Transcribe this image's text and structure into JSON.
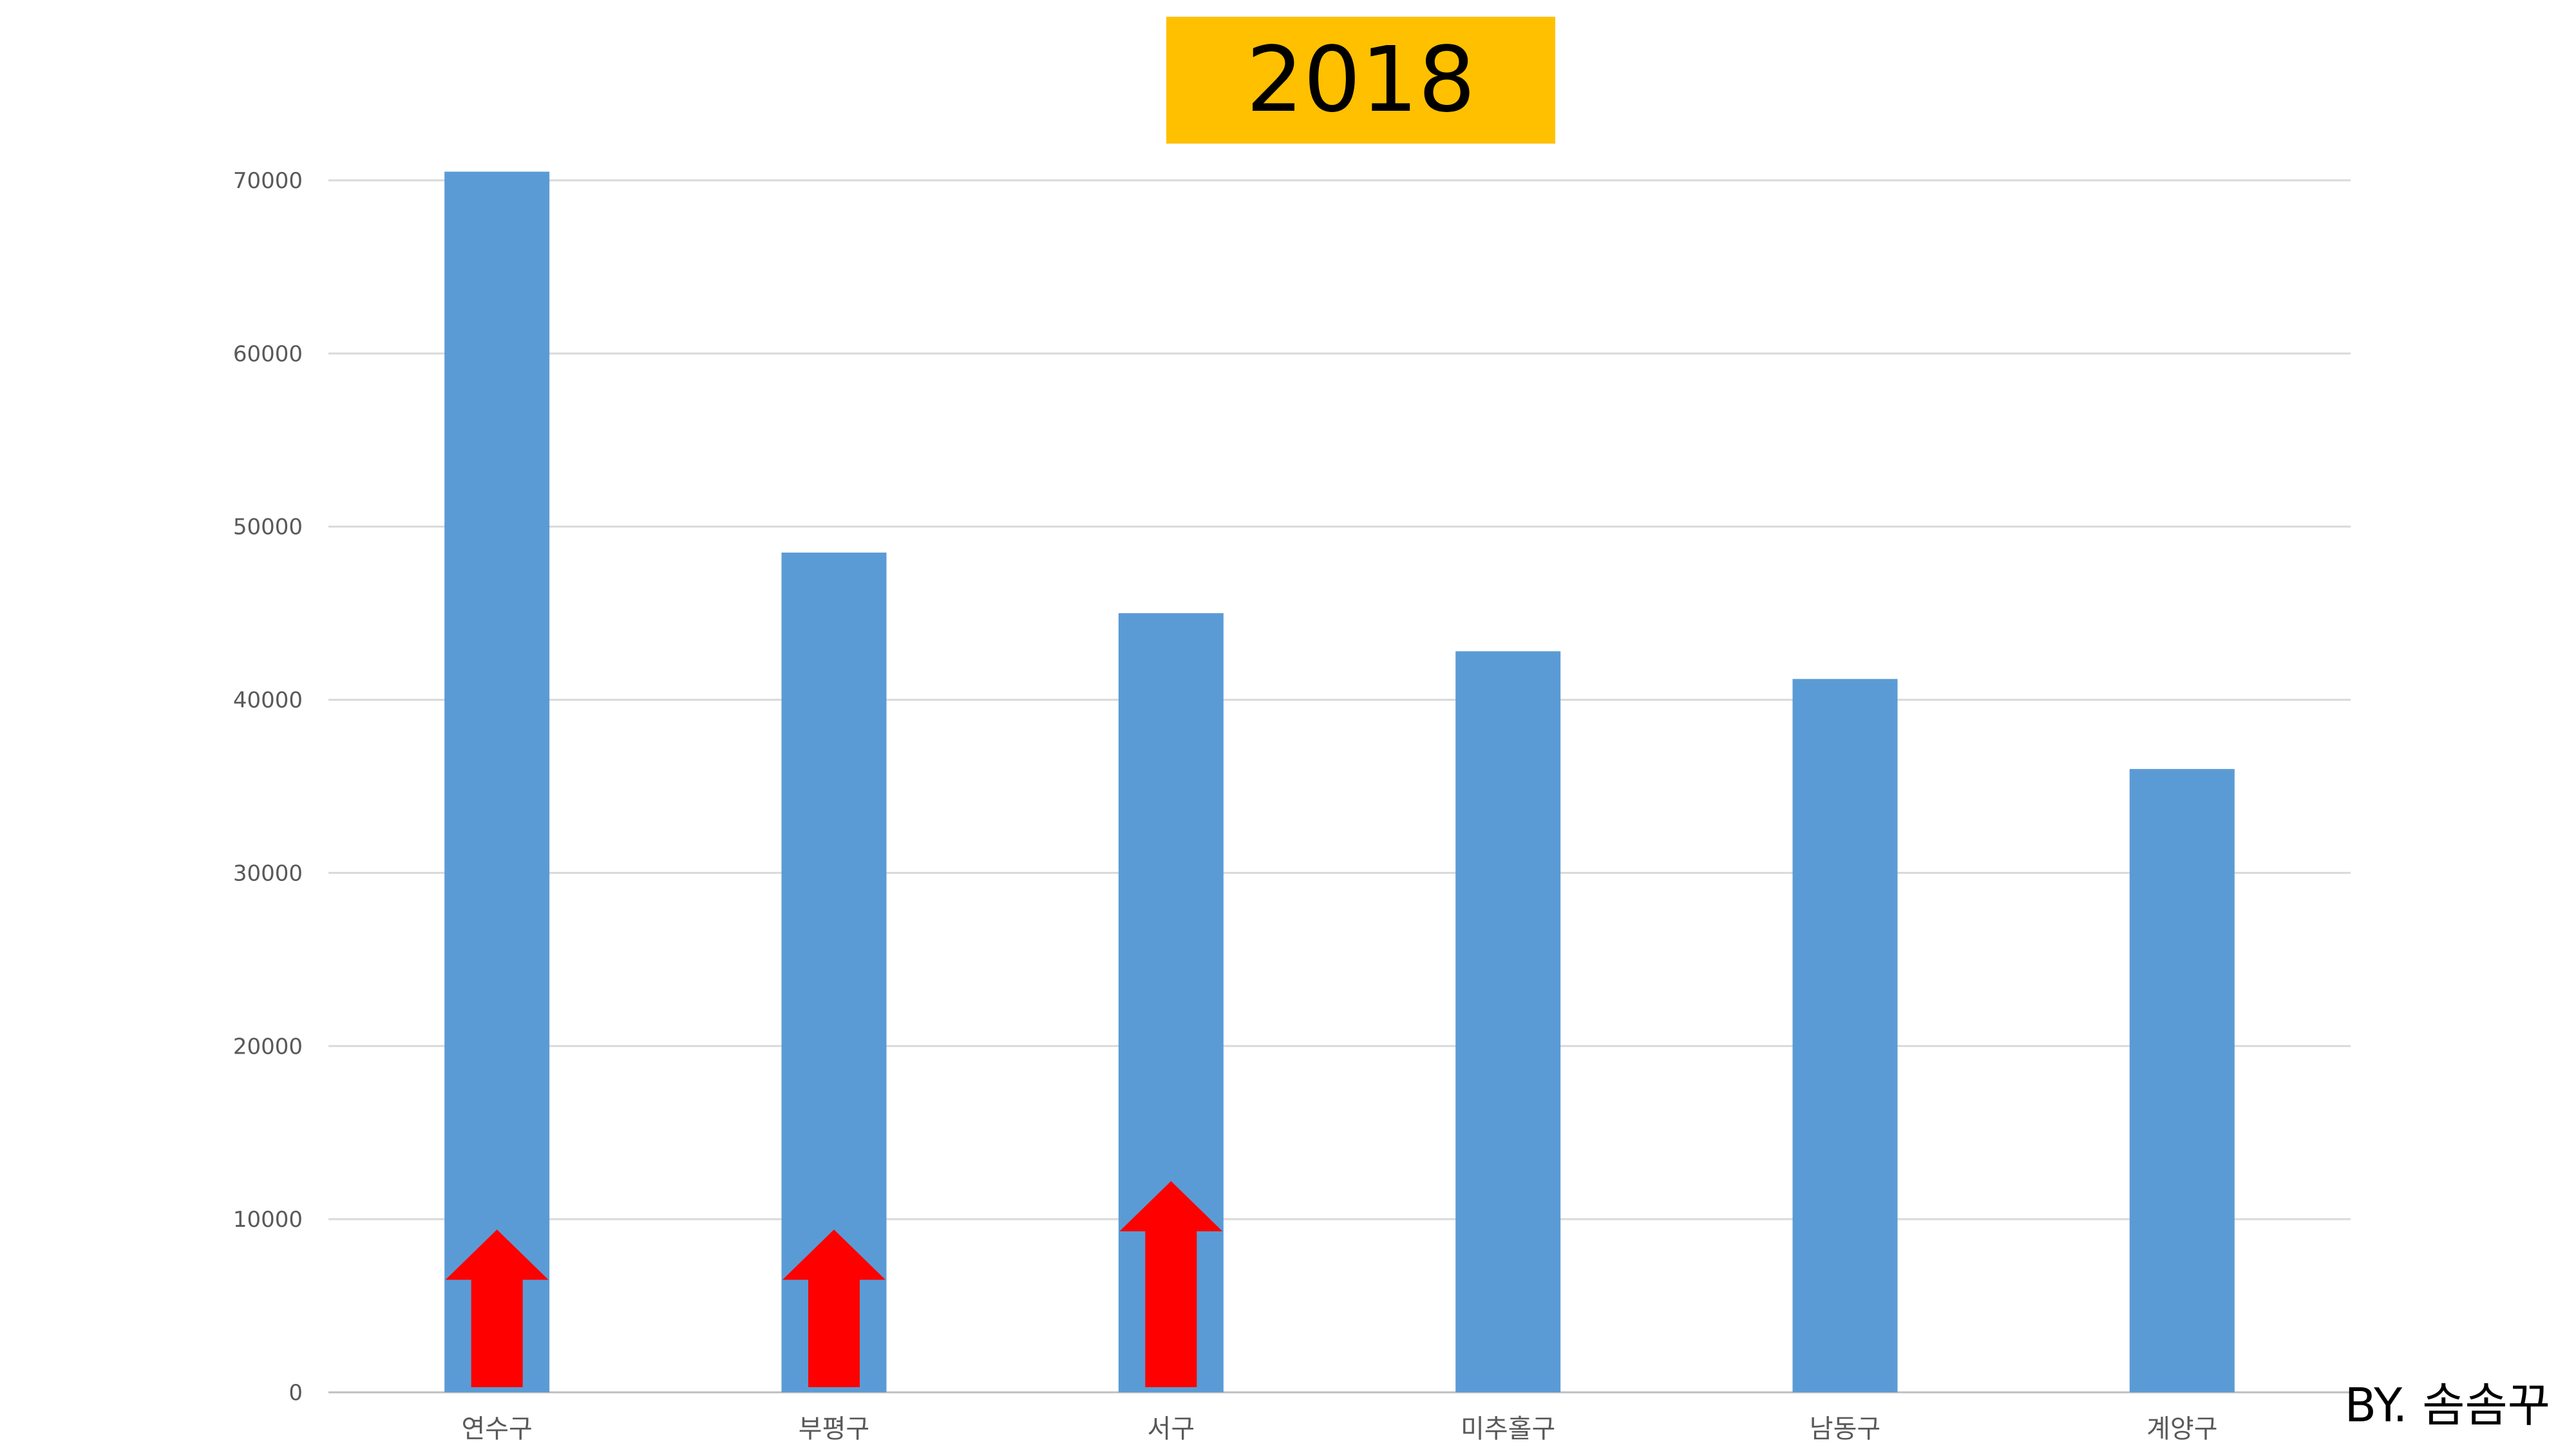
{
  "chart_data": {
    "type": "bar",
    "title": "2018",
    "xlabel": "",
    "ylabel": "",
    "categories": [
      "연수구",
      "부평구",
      "서구",
      "미추홀구",
      "남동구",
      "계양구"
    ],
    "values": [
      70500,
      48500,
      45000,
      42800,
      41200,
      36000
    ],
    "ylim": [
      0,
      70000
    ],
    "yticks": [
      0,
      10000,
      20000,
      30000,
      40000,
      50000,
      60000,
      70000
    ],
    "grid": true,
    "legend": "none",
    "bar_color": "#5b9bd5",
    "title_background": "#ffc000",
    "annotations": [
      {
        "type": "up-arrow",
        "category": "연수구",
        "color": "#ff0000",
        "top_value": 9400
      },
      {
        "type": "up-arrow",
        "category": "부평구",
        "color": "#ff0000",
        "top_value": 9400
      },
      {
        "type": "up-arrow",
        "category": "서구",
        "color": "#ff0000",
        "top_value": 12200
      }
    ]
  },
  "credit": "BY. 솜솜꾸"
}
